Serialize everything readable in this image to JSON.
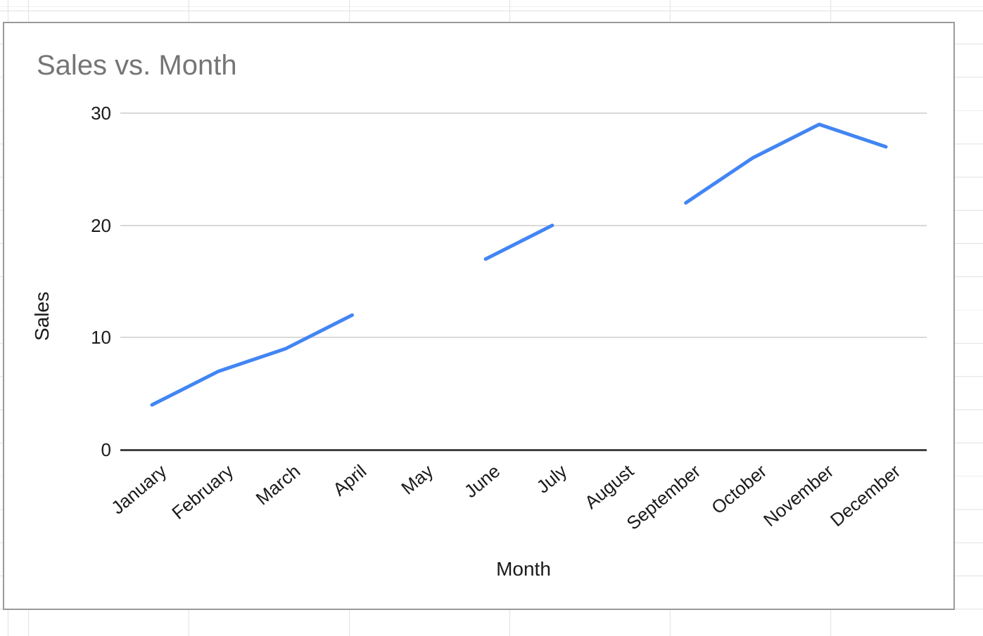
{
  "theme": {
    "series_color": "#4285f4",
    "title_color": "#757575",
    "text_color": "#1a1a1a",
    "gridline_color": "#d9d9d9",
    "axis_color": "#424242",
    "card_border_color": "#9a9a9a",
    "sheet_grid_color": "#e3e3e3"
  },
  "chart_data": {
    "type": "line",
    "title": "Sales vs. Month",
    "xlabel": "Month",
    "ylabel": "Sales",
    "categories": [
      "January",
      "February",
      "March",
      "April",
      "May",
      "June",
      "July",
      "August",
      "September",
      "October",
      "November",
      "December"
    ],
    "series": [
      {
        "name": "Sales",
        "values": [
          4,
          7,
          9,
          12,
          null,
          17,
          20,
          null,
          22,
          26,
          29,
          27
        ]
      }
    ],
    "ylim": [
      0,
      30
    ],
    "yticks": [
      0,
      10,
      20,
      30
    ],
    "grid": true,
    "legend": "none",
    "x_label_rotation_deg": -40,
    "line_gaps_at": [
      "May",
      "August"
    ]
  }
}
